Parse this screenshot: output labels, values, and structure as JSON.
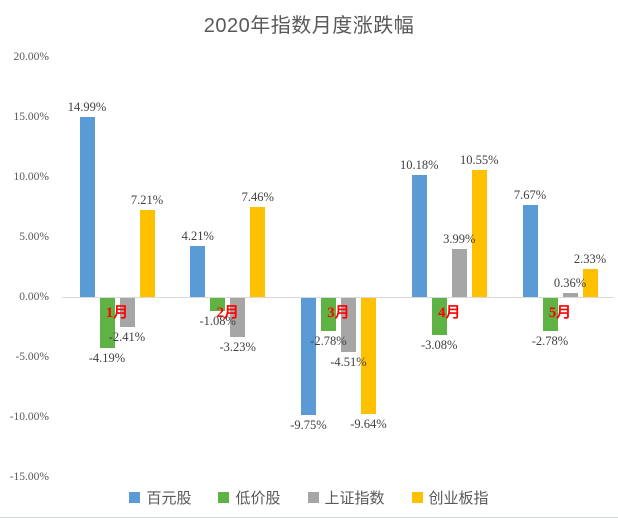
{
  "title": "2020年指数月度涨跌幅",
  "colors": {
    "blue": "#5B9BD5",
    "green": "#5FB345",
    "gray": "#A6A6A6",
    "yellow": "#FFC000",
    "month_label": "#FF0000",
    "axis_text": "#595959",
    "data_label_text": "#404040",
    "axis_line": "#D9D9D9"
  },
  "chart_data": {
    "type": "bar",
    "title": "2020年指数月度涨跌幅",
    "categories": [
      "1月",
      "2月",
      "3月",
      "4月",
      "5月"
    ],
    "category_slugs": [
      "month-1",
      "month-2",
      "month-3",
      "month-4",
      "month-5"
    ],
    "category_label_color": "#FF0000",
    "series": [
      {
        "name": "百元股",
        "slug": "hundred-yuan-stocks",
        "color": "#5B9BD5",
        "values": [
          14.99,
          4.21,
          -9.75,
          10.18,
          7.67
        ],
        "labels": [
          "14.99%",
          "4.21%",
          "-9.75%",
          "10.18%",
          "7.67%"
        ]
      },
      {
        "name": "低价股",
        "slug": "low-price-stocks",
        "color": "#5FB345",
        "values": [
          -4.19,
          -1.08,
          -2.78,
          -3.08,
          -2.78
        ],
        "labels": [
          "-4.19%",
          "-1.08%",
          "-2.78%",
          "-3.08%",
          "-2.78%"
        ]
      },
      {
        "name": "上证指数",
        "slug": "sse-composite-index",
        "color": "#A6A6A6",
        "values": [
          -2.41,
          -3.23,
          -4.51,
          3.99,
          0.36
        ],
        "labels": [
          "-2.41%",
          "-3.23%",
          "-4.51%",
          "3.99%",
          "0.36%"
        ]
      },
      {
        "name": "创业板指",
        "slug": "chinext-index",
        "color": "#FFC000",
        "values": [
          7.21,
          7.46,
          -9.64,
          10.55,
          2.33
        ],
        "labels": [
          "7.21%",
          "7.46%",
          "-9.64%",
          "10.55%",
          "2.33%"
        ]
      }
    ],
    "y_axis": {
      "ticks": [
        "20.00%",
        "15.00%",
        "10.00%",
        "5.00%",
        "0.00%",
        "-5.00%",
        "-10.00%",
        "-15.00%"
      ],
      "tick_values": [
        20,
        15,
        10,
        5,
        0,
        -5,
        -10,
        -15
      ],
      "min": -15,
      "max": 20
    },
    "grid": false,
    "legend_position": "bottom"
  }
}
